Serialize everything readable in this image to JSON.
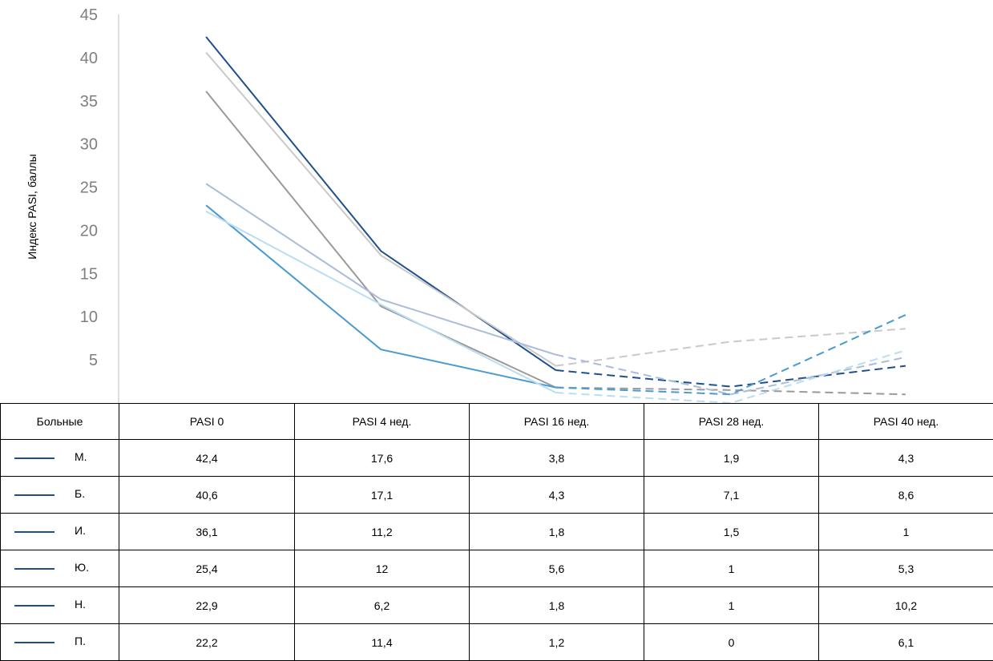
{
  "chart_data": {
    "type": "line",
    "ylabel": "Индекс PASI, баллы",
    "xlabel": "",
    "ylim": [
      0,
      45
    ],
    "yticks": [
      5,
      10,
      15,
      20,
      25,
      30,
      35,
      40,
      45
    ],
    "categories": [
      "PASI 0",
      "PASI 4 нед.",
      "PASI 16 нед.",
      "PASI 28 нед.",
      "PASI 40 нед."
    ],
    "solid_segments_through": "PASI 16 нед.",
    "series": [
      {
        "name": "М.",
        "values": [
          42.4,
          17.6,
          3.8,
          1.9,
          4.3
        ],
        "color": "#1f4e8c"
      },
      {
        "name": "Б.",
        "values": [
          40.6,
          17.1,
          4.3,
          7.1,
          8.6
        ],
        "color": "#c9c9c9"
      },
      {
        "name": "И.",
        "values": [
          36.1,
          11.2,
          1.8,
          1.5,
          1
        ],
        "color": "#9a9a9a"
      },
      {
        "name": "Ю.",
        "values": [
          25.4,
          12,
          5.6,
          1,
          5.3
        ],
        "color": "#a9bcdc"
      },
      {
        "name": "Н.",
        "values": [
          22.9,
          6.2,
          1.8,
          1,
          10.2
        ],
        "color": "#4a9bd0"
      },
      {
        "name": "П.",
        "values": [
          22.2,
          11.4,
          1.2,
          0,
          6.1
        ],
        "color": "#b9ddf2"
      }
    ]
  },
  "table": {
    "corner_label": "Больные",
    "columns": [
      "PASI 0",
      "PASI 4 нед.",
      "PASI 16 нед.",
      "PASI 28 нед.",
      "PASI 40 нед."
    ],
    "rows": [
      {
        "name": "М.",
        "cells": [
          "42,4",
          "17,6",
          "3,8",
          "1,9",
          "4,3"
        ]
      },
      {
        "name": "Б.",
        "cells": [
          "40,6",
          "17,1",
          "4,3",
          "7,1",
          "8,6"
        ]
      },
      {
        "name": "И.",
        "cells": [
          "36,1",
          "11,2",
          "1,8",
          "1,5",
          "1"
        ]
      },
      {
        "name": "Ю.",
        "cells": [
          "25,4",
          "12",
          "5,6",
          "1",
          "5,3"
        ]
      },
      {
        "name": "Н.",
        "cells": [
          "22,9",
          "6,2",
          "1,8",
          "1",
          "10,2"
        ]
      },
      {
        "name": "П.",
        "cells": [
          "22,2",
          "11,4",
          "1,2",
          "0",
          "6,1"
        ]
      }
    ]
  }
}
